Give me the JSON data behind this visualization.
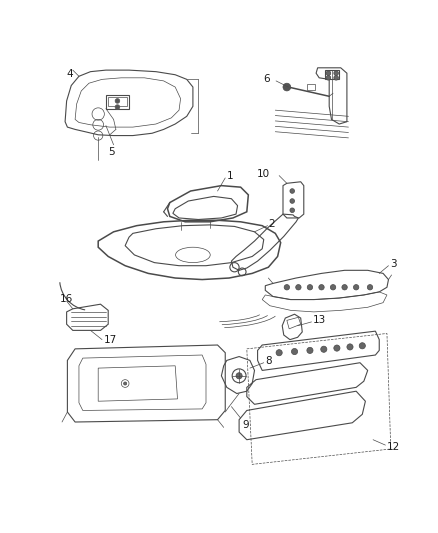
{
  "background_color": "#ffffff",
  "line_color": "#4a4a4a",
  "label_color": "#1a1a1a",
  "figsize": [
    4.38,
    5.33
  ],
  "dpi": 100,
  "lw_thin": 0.5,
  "lw_med": 0.8,
  "lw_thick": 1.1,
  "label_fs": 7.5
}
